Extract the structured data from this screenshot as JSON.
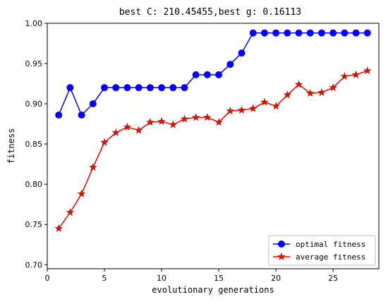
{
  "chart_data": {
    "type": "line",
    "title": "best C: 210.45455,best g: 0.16113",
    "xlabel": "evolutionary generations",
    "ylabel": "fitness",
    "xlim": [
      0,
      29
    ],
    "ylim": [
      0.695,
      1.0
    ],
    "xticks": [
      0,
      5,
      10,
      15,
      20,
      25
    ],
    "yticks": [
      0.7,
      0.75,
      0.8,
      0.85,
      0.9,
      0.95,
      1.0
    ],
    "grid": false,
    "legend_position": "lower-right",
    "series": [
      {
        "name": "optimal fitness",
        "color": "#0000ff",
        "marker": "circle",
        "x": [
          1,
          2,
          3,
          4,
          5,
          6,
          7,
          8,
          9,
          10,
          11,
          12,
          13,
          14,
          15,
          16,
          17,
          18,
          19,
          20,
          21,
          22,
          23,
          24,
          25,
          26,
          27,
          28
        ],
        "values": [
          0.886,
          0.92,
          0.886,
          0.9,
          0.92,
          0.92,
          0.92,
          0.92,
          0.92,
          0.92,
          0.92,
          0.92,
          0.936,
          0.936,
          0.936,
          0.949,
          0.963,
          0.988,
          0.988,
          0.988,
          0.988,
          0.988,
          0.988,
          0.988,
          0.988,
          0.988,
          0.988,
          0.988
        ]
      },
      {
        "name": "average fitness",
        "color": "#ff0000",
        "marker": "star",
        "x": [
          1,
          2,
          3,
          4,
          5,
          6,
          7,
          8,
          9,
          10,
          11,
          12,
          13,
          14,
          15,
          16,
          17,
          18,
          19,
          20,
          21,
          22,
          23,
          24,
          25,
          26,
          27,
          28
        ],
        "values": [
          0.745,
          0.765,
          0.788,
          0.821,
          0.852,
          0.864,
          0.871,
          0.867,
          0.877,
          0.878,
          0.874,
          0.881,
          0.883,
          0.883,
          0.877,
          0.891,
          0.892,
          0.894,
          0.902,
          0.897,
          0.911,
          0.924,
          0.913,
          0.914,
          0.92,
          0.934,
          0.936,
          0.941
        ]
      }
    ]
  }
}
